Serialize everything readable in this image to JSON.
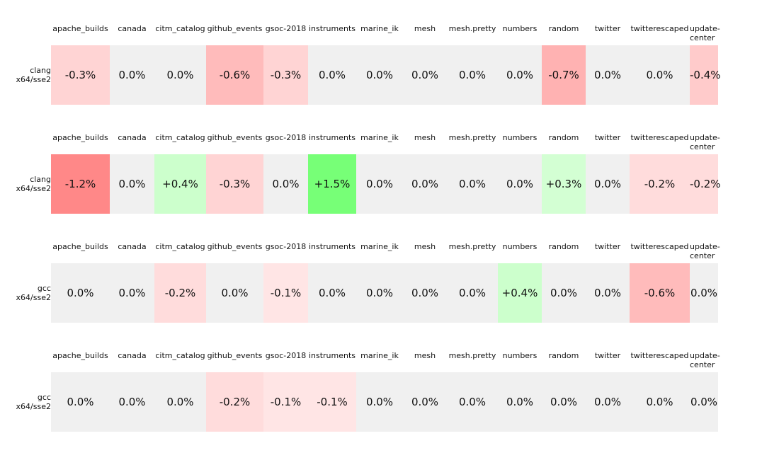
{
  "chart_data": {
    "type": "heatmap",
    "columns": [
      "apache_builds",
      "canada",
      "citm_catalog",
      "github_events",
      "gsoc-2018",
      "instruments",
      "marine_ik",
      "mesh",
      "mesh.pretty",
      "numbers",
      "random",
      "twitter",
      "twitterescaped",
      "update-center"
    ],
    "value_format": "percent change",
    "rows": [
      {
        "compiler": "clang",
        "target": "x64/sse2",
        "values": [
          -0.3,
          0.0,
          0.0,
          -0.6,
          -0.3,
          0.0,
          0.0,
          0.0,
          0.0,
          0.0,
          -0.7,
          0.0,
          0.0,
          -0.4
        ],
        "labels": [
          "-0.3%",
          "0.0%",
          "0.0%",
          "-0.6%",
          "-0.3%",
          "0.0%",
          "0.0%",
          "0.0%",
          "0.0%",
          "0.0%",
          "-0.7%",
          "0.0%",
          "0.0%",
          "-0.4%"
        ]
      },
      {
        "compiler": "clang",
        "target": "x64/sse2",
        "values": [
          -1.2,
          0.0,
          0.4,
          -0.3,
          0.0,
          1.5,
          0.0,
          0.0,
          0.0,
          0.0,
          0.3,
          0.0,
          -0.2,
          -0.2
        ],
        "labels": [
          "-1.2%",
          "0.0%",
          "+0.4%",
          "-0.3%",
          "0.0%",
          "+1.5%",
          "0.0%",
          "0.0%",
          "0.0%",
          "0.0%",
          "+0.3%",
          "0.0%",
          "-0.2%",
          "-0.2%"
        ]
      },
      {
        "compiler": "gcc",
        "target": "x64/sse2",
        "values": [
          0.0,
          0.0,
          -0.2,
          0.0,
          -0.1,
          0.0,
          0.0,
          0.0,
          0.0,
          0.4,
          0.0,
          0.0,
          -0.6,
          0.0
        ],
        "labels": [
          "0.0%",
          "0.0%",
          "-0.2%",
          "0.0%",
          "-0.1%",
          "0.0%",
          "0.0%",
          "0.0%",
          "0.0%",
          "+0.4%",
          "0.0%",
          "0.0%",
          "-0.6%",
          "0.0%"
        ]
      },
      {
        "compiler": "gcc",
        "target": "x64/sse2",
        "values": [
          0.0,
          0.0,
          0.0,
          -0.2,
          -0.1,
          -0.1,
          0.0,
          0.0,
          0.0,
          0.0,
          0.0,
          0.0,
          0.0,
          0.0
        ],
        "labels": [
          "0.0%",
          "0.0%",
          "0.0%",
          "-0.2%",
          "-0.1%",
          "-0.1%",
          "0.0%",
          "0.0%",
          "0.0%",
          "0.0%",
          "0.0%",
          "0.0%",
          "0.0%",
          "0.0%"
        ]
      }
    ],
    "colors": {
      "neutral": "#f0f0f0",
      "negative_strong": "#ff8888",
      "positive_strong": "#77ff77"
    }
  }
}
